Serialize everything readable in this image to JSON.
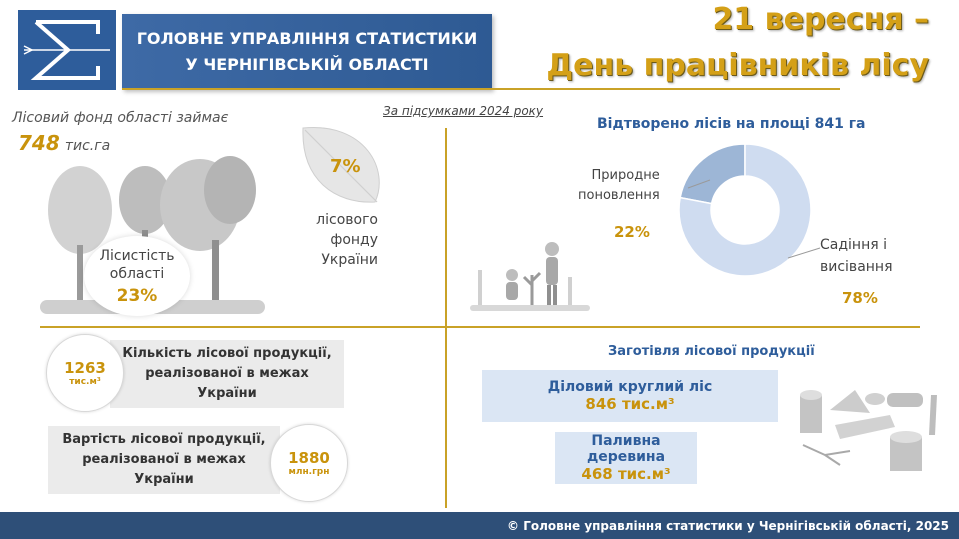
{
  "header": {
    "org_line1": "ГОЛОВНЕ УПРАВЛІННЯ СТАТИСТИКИ",
    "org_line2": "У ЧЕРНІГІВСЬКІЙ ОБЛАСТІ",
    "title_line1": "21 вересня –",
    "title_line2": "День працівників лісу"
  },
  "subtitle": "За підсумками 2024 року",
  "forest_fund": {
    "label": "Лісовий фонд області займає",
    "value": "748",
    "unit": "тис.га"
  },
  "forest_cover": {
    "label_line1": "Лісистість",
    "label_line2": "області",
    "value": "23%"
  },
  "share_ukraine": {
    "value": "7%",
    "line1": "лісового",
    "line2": "фонду",
    "line3": "України"
  },
  "reforestation": {
    "title": "Відтворено лісів на площі 841 га",
    "natural_label_line1": "Природне",
    "natural_label_line2": "поновлення",
    "natural_value": "22%",
    "planting_label_line1": "Садіння і",
    "planting_label_line2": "висівання",
    "planting_value": "78%"
  },
  "chart_data": {
    "type": "pie",
    "title": "Відтворено лісів на площі 841 га",
    "categories": [
      "Природне поновлення",
      "Садіння і висівання"
    ],
    "values": [
      22,
      78
    ],
    "colors": [
      "#9db6d6",
      "#cfdcf0"
    ]
  },
  "products": {
    "quantity_value": "1263",
    "quantity_unit": "тис.м³",
    "quantity_line1": "Кількість лісової продукції,",
    "quantity_line2": "реалізованої в межах",
    "quantity_line3": "України",
    "cost_value": "1880",
    "cost_unit": "млн.грн",
    "cost_line1": "Вартість лісової продукції,",
    "cost_line2": "реалізованої в межах",
    "cost_line3": "України"
  },
  "harvest": {
    "title": "Заготівля лісової продукції",
    "roundwood_label": "Діловий круглий ліс",
    "roundwood_value": "846 тис.м³",
    "firewood_label": "Паливна деревина",
    "firewood_value": "468 тис.м³"
  },
  "footer": "© Головне управління статистики у Чернігівській області, 2025",
  "colors": {
    "accent_gold": "#c9930c",
    "header_blue": "#2e5d9b",
    "rule_gold": "#c9a227",
    "footer_blue": "#2e4f78"
  }
}
